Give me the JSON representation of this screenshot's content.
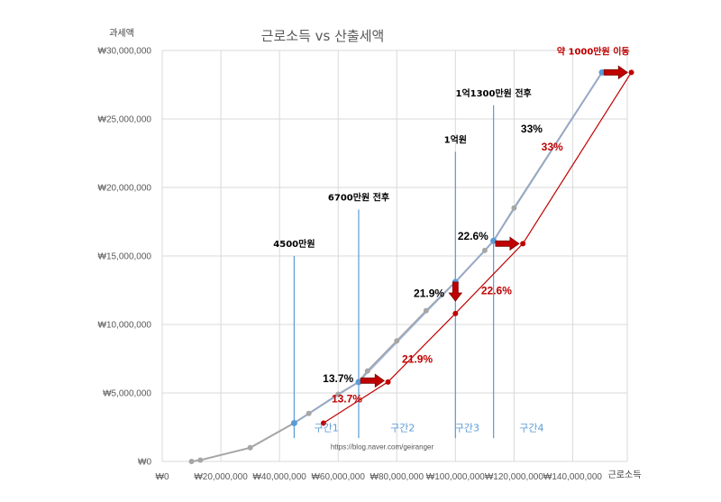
{
  "chart_data": {
    "type": "line",
    "title": "근로소득 vs 산출세액",
    "xlabel": "근로소득",
    "ylabel": "과세액",
    "xlim": [
      0,
      150000000
    ],
    "ylim": [
      0,
      30000000
    ],
    "x_ticks": [
      "₩0",
      "₩20,000,000",
      "₩40,000,000",
      "₩60,000,000",
      "₩80,000,000",
      "₩100,000,000",
      "₩120,000,000",
      "₩140,000,000"
    ],
    "y_ticks": [
      "₩0",
      "₩5,000,000",
      "₩10,000,000",
      "₩15,000,000",
      "₩20,000,000",
      "₩25,000,000",
      "₩30,000,000"
    ],
    "grid": true,
    "series": [
      {
        "color": "#a6a6a6",
        "x": [
          10000000,
          13000000,
          30000000,
          45000000,
          50000000,
          60000000,
          67000000,
          70000000,
          80000000,
          90000000,
          100000000,
          110000000,
          113000000,
          120000000,
          150000000
        ],
        "y": [
          0,
          100000,
          1000000,
          2800000,
          3500000,
          4900000,
          5800000,
          6600000,
          8800000,
          11000000,
          13100000,
          15400000,
          16100000,
          18500000,
          28400000
        ]
      },
      {
        "color": "#c00000",
        "x": [
          55000000,
          77000000,
          100000000,
          123000000,
          160000000
        ],
        "y": [
          2800000,
          5800000,
          10800000,
          15900000,
          28400000
        ]
      }
    ],
    "highlight_points": [
      {
        "x": 45000000,
        "y": 2800000
      },
      {
        "x": 67000000,
        "y": 5800000
      },
      {
        "x": 100000000,
        "y": 13100000
      },
      {
        "x": 113000000,
        "y": 16100000
      },
      {
        "x": 150000000,
        "y": 28400000
      }
    ],
    "threshold_lines": [
      {
        "x": 45000000,
        "y_top": 15000000,
        "label": "4500만원"
      },
      {
        "x": 67000000,
        "y_top": 18400000,
        "label": "6700만원 전후"
      },
      {
        "x": 100000000,
        "y_top": 22600000,
        "label": "1억원"
      },
      {
        "x": 113000000,
        "y_top": 26000000,
        "label": "1억1300만원 전후"
      }
    ],
    "rate_labels_black": [
      {
        "x": 60000000,
        "y": 5800000,
        "text": "13.7%"
      },
      {
        "x": 91000000,
        "y": 12000000,
        "text": "21.9%"
      },
      {
        "x": 106000000,
        "y": 16200000,
        "text": "22.6%"
      },
      {
        "x": 126000000,
        "y": 24000000,
        "text": "33%"
      }
    ],
    "rate_labels_red": [
      {
        "x": 63000000,
        "y": 4300000,
        "text": "13.7%"
      },
      {
        "x": 87000000,
        "y": 7200000,
        "text": "21.9%"
      },
      {
        "x": 114000000,
        "y": 12200000,
        "text": "22.6%"
      },
      {
        "x": 133000000,
        "y": 22700000,
        "text": "33%"
      }
    ],
    "zone_labels": [
      {
        "x": 56000000,
        "y": 2200000,
        "text": "구간1"
      },
      {
        "x": 82000000,
        "y": 2200000,
        "text": "구간2"
      },
      {
        "x": 104000000,
        "y": 2200000,
        "text": "구간3"
      },
      {
        "x": 126000000,
        "y": 2200000,
        "text": "구간4"
      }
    ],
    "arrows": [
      {
        "x": 72000000,
        "y": 5900000,
        "dir": "right"
      },
      {
        "x": 100000000,
        "y": 12300000,
        "dir": "down"
      },
      {
        "x": 118000000,
        "y": 15900000,
        "dir": "right"
      },
      {
        "x": 155000000,
        "y": 28400000,
        "dir": "right"
      }
    ],
    "move_note": {
      "x": 147000000,
      "y": 29700000,
      "text": "약 1000만원 이동"
    },
    "source_url": {
      "x": 75000000,
      "y": 900000,
      "text": "https://blog.naver.com/geiranger"
    }
  }
}
